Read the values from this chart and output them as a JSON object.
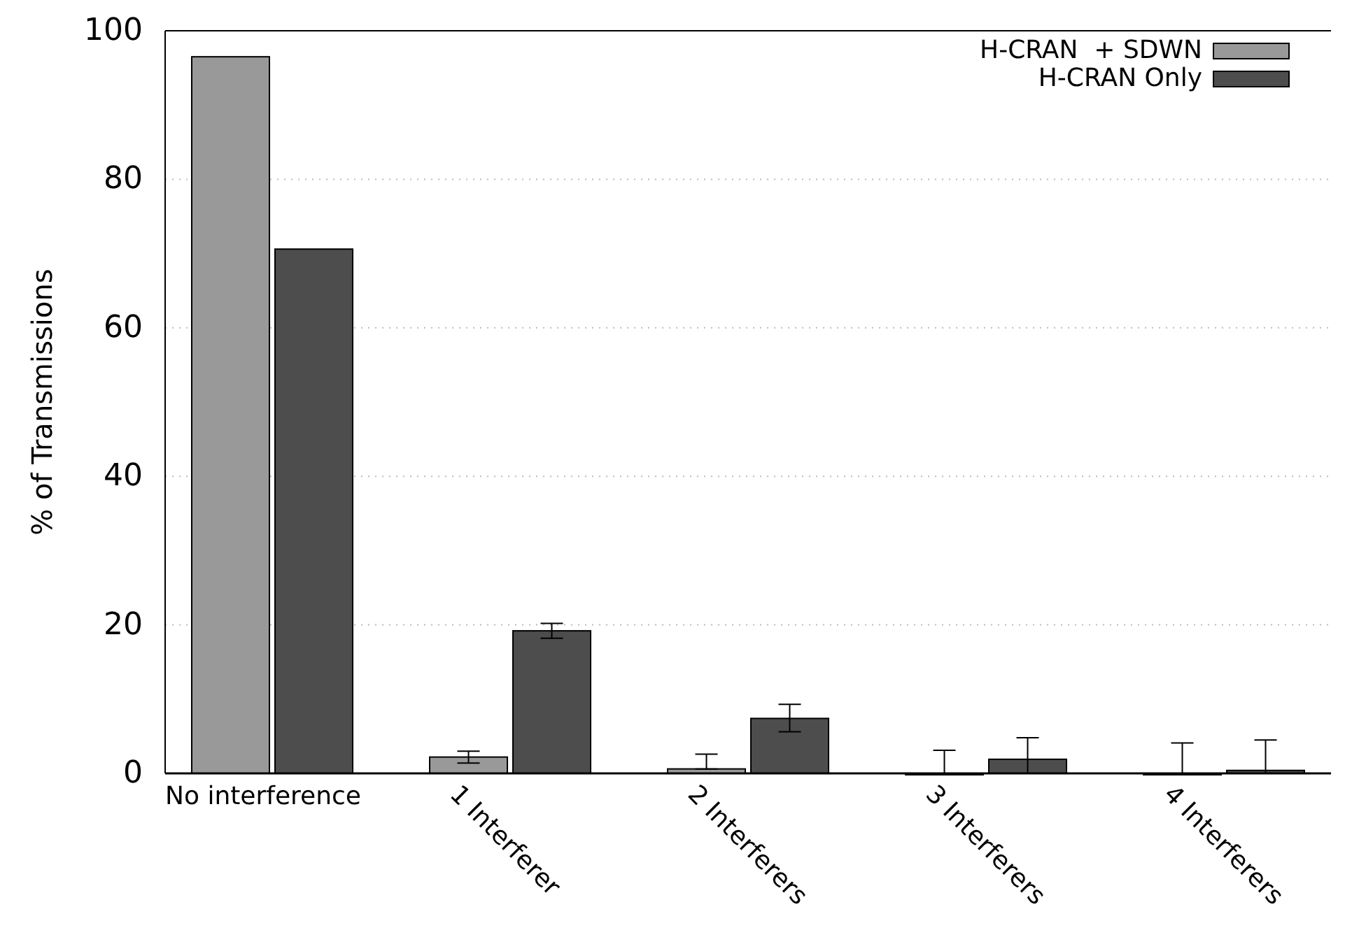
{
  "chart_data": {
    "type": "bar",
    "ylabel": "% of Transmissions",
    "categories": [
      "No interference",
      "1 Interferer",
      "2 Interferers",
      "3 Interferers",
      "4 Interferers"
    ],
    "series": [
      {
        "name": "H-CRAN  + SDWN",
        "color": "#999999",
        "values": [
          96.5,
          2.2,
          0.6,
          0,
          0
        ],
        "errors": [
          null,
          0.8,
          [
            0.6,
            2.6
          ],
          [
            0,
            3.1
          ],
          [
            0,
            4.1
          ]
        ]
      },
      {
        "name": "H-CRAN Only",
        "color": "#4d4d4d",
        "values": [
          70.6,
          19.2,
          7.4,
          1.9,
          0.4
        ],
        "errors": [
          null,
          1.0,
          [
            5.6,
            9.3
          ],
          [
            0,
            4.8
          ],
          [
            0,
            4.5
          ]
        ]
      }
    ],
    "ylim": [
      0,
      100
    ],
    "yticks": [
      0,
      20,
      40,
      60,
      80,
      100
    ],
    "grid": "y",
    "legend": "top right"
  }
}
